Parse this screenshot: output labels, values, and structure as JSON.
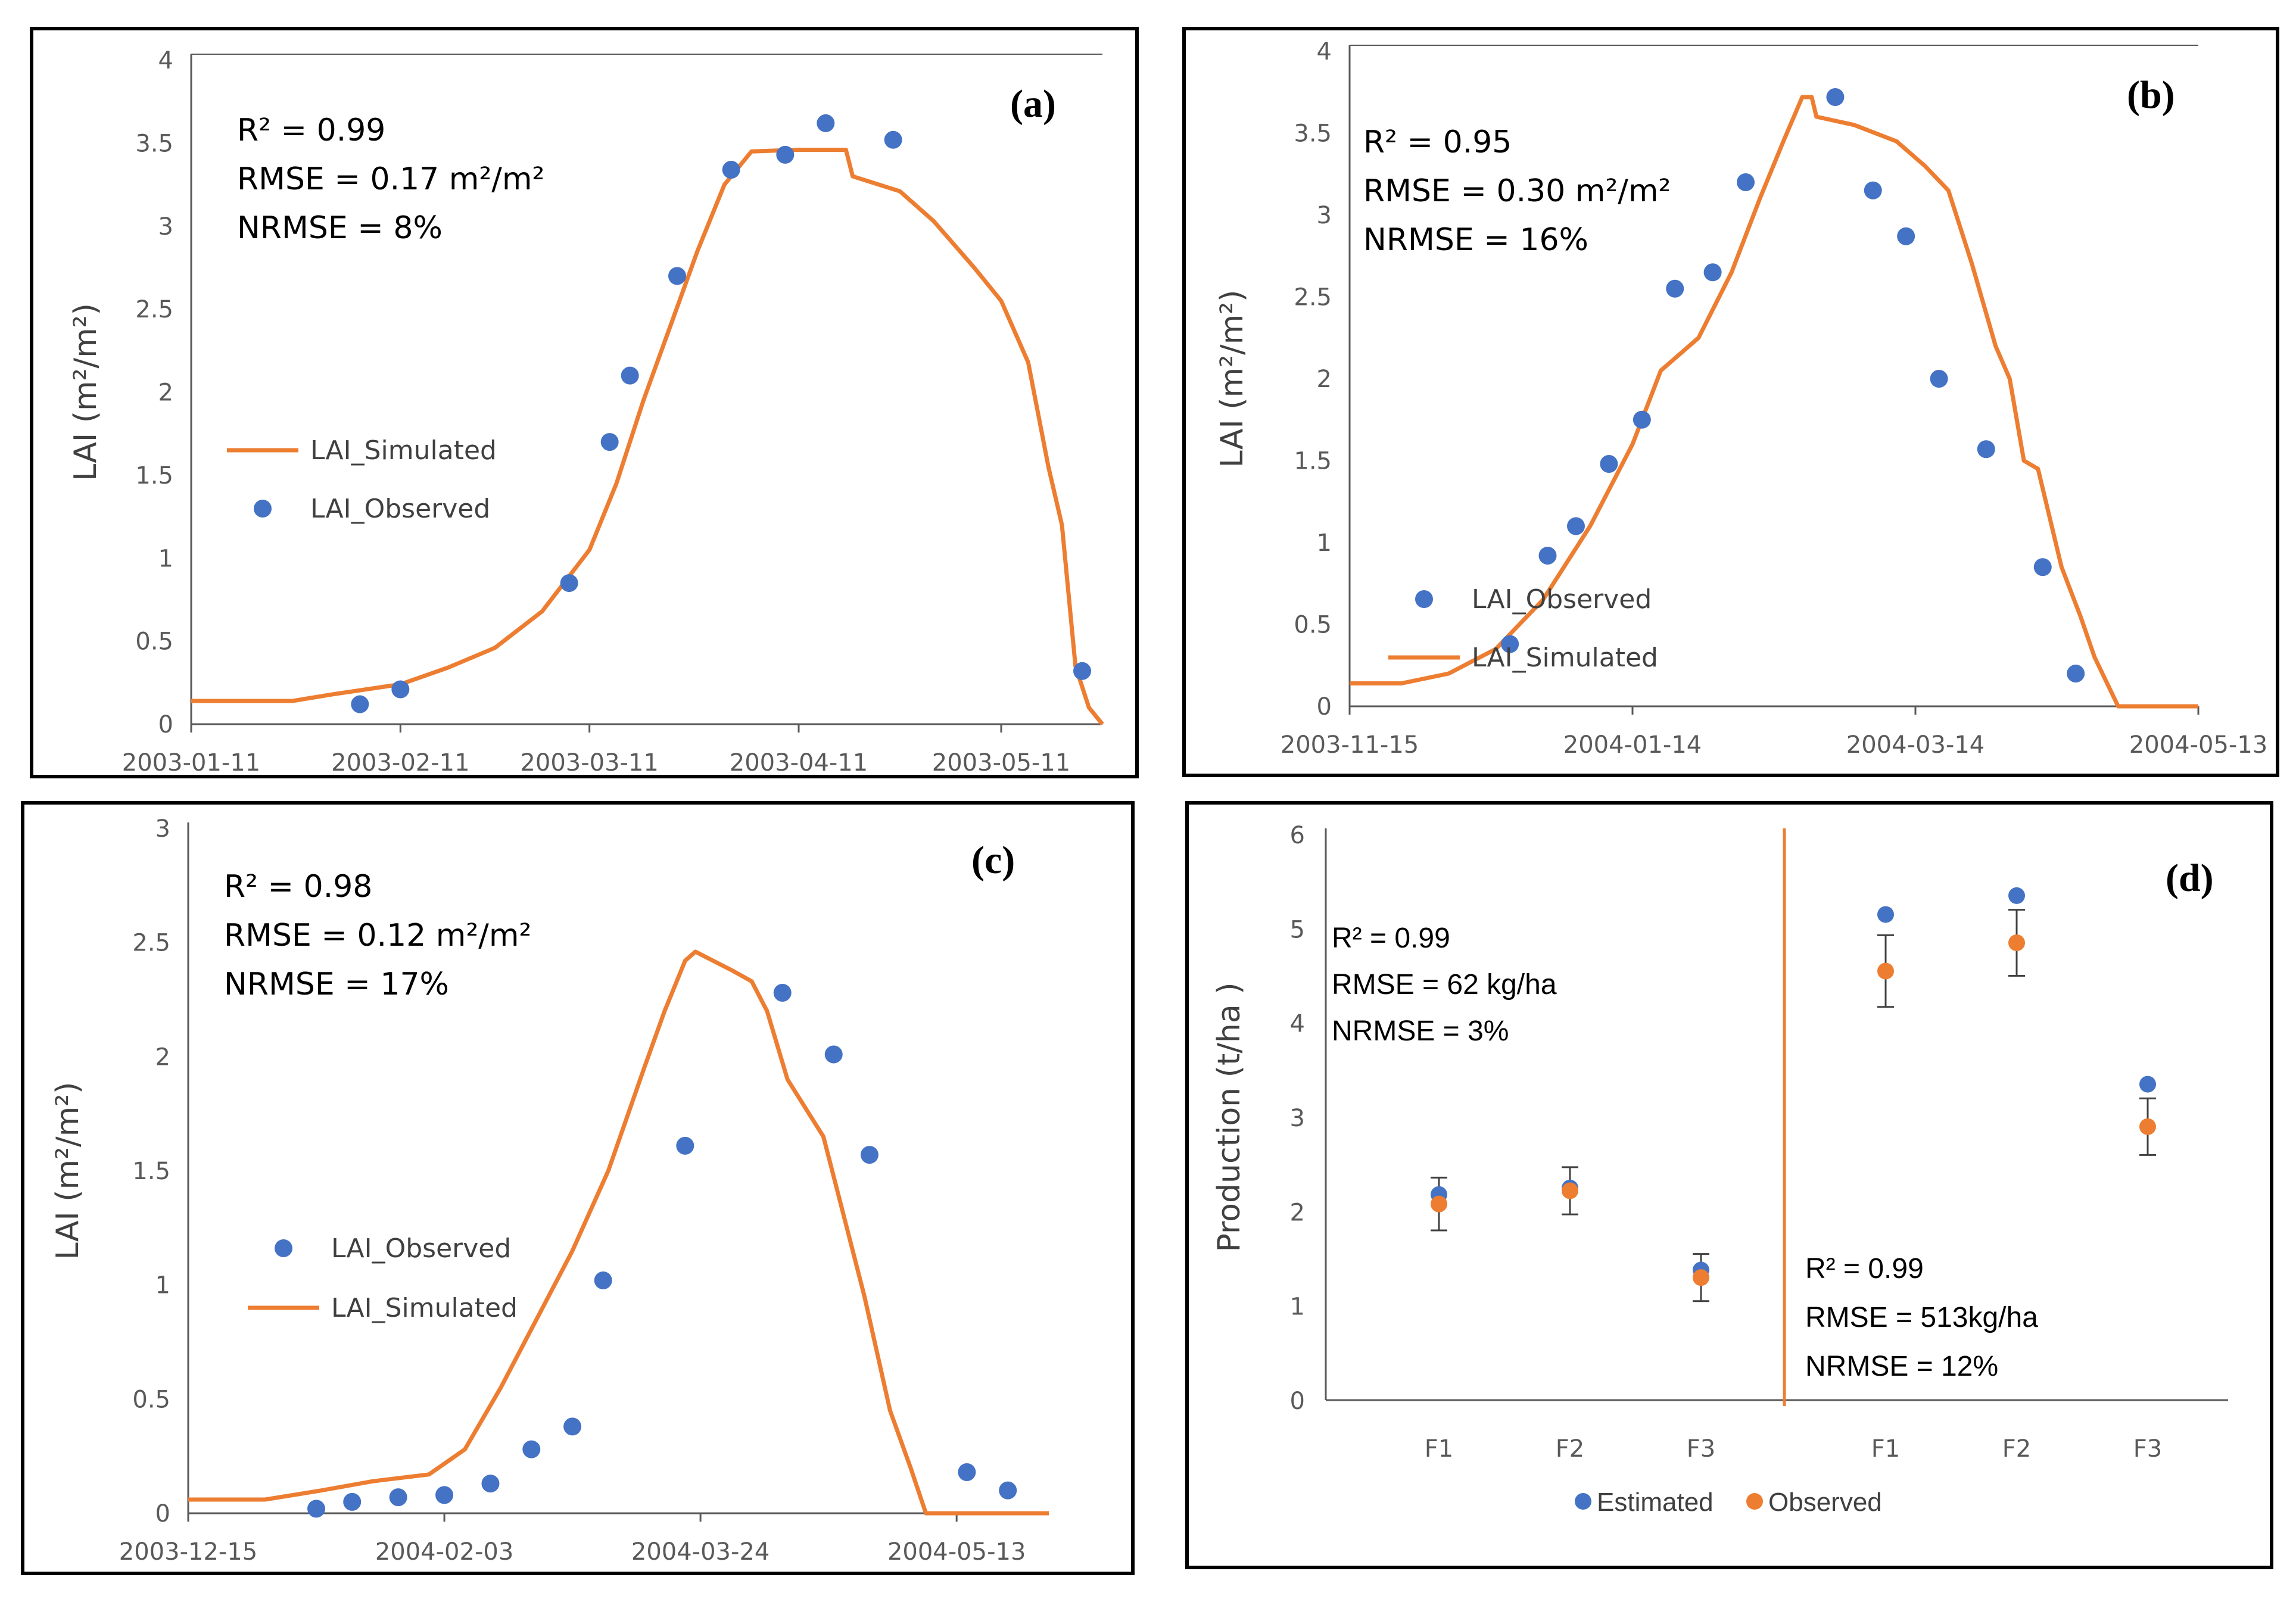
{
  "colors": {
    "simulated": "#ED7D31",
    "observed": "#4472C4",
    "estimated": "#4472C4",
    "observed_d": "#ED7D31",
    "axis": "#595959",
    "divider": "#ED7D31",
    "errorbar": "#404040"
  },
  "chart_data": [
    {
      "id": "a",
      "type": "line",
      "panel_label": "(a)",
      "ylabel": "LAI (m²/m²)",
      "ylim": [
        0,
        4
      ],
      "yticks": [
        "0",
        "0.5",
        "1",
        "1.5",
        "2",
        "2.5",
        "3",
        "3.5",
        "4"
      ],
      "xaxis_kind": "date",
      "xlim": [
        "2003-01-11",
        "2003-05-26"
      ],
      "xticks": [
        "2003-01-11",
        "2003-02-11",
        "2003-03-11",
        "2003-04-11",
        "2003-05-11"
      ],
      "stats": [
        "R² = 0.99",
        "RMSE = 0.17 m²/m²",
        "NRMSE = 8%"
      ],
      "legend": {
        "simulated": "LAI_Simulated",
        "observed": "LAI_Observed",
        "order": [
          "simulated",
          "observed"
        ]
      },
      "series": [
        {
          "name": "LAI_Simulated",
          "kind": "line",
          "points": [
            [
              "2003-01-11",
              0.14
            ],
            [
              "2003-01-26",
              0.14
            ],
            [
              "2003-02-01",
              0.18
            ],
            [
              "2003-02-11",
              0.24
            ],
            [
              "2003-02-18",
              0.34
            ],
            [
              "2003-02-25",
              0.46
            ],
            [
              "2003-03-04",
              0.68
            ],
            [
              "2003-03-11",
              1.05
            ],
            [
              "2003-03-15",
              1.45
            ],
            [
              "2003-03-19",
              1.95
            ],
            [
              "2003-03-23",
              2.4
            ],
            [
              "2003-03-27",
              2.85
            ],
            [
              "2003-03-31",
              3.25
            ],
            [
              "2003-04-04",
              3.45
            ],
            [
              "2003-04-11",
              3.46
            ],
            [
              "2003-04-18",
              3.46
            ],
            [
              "2003-04-19",
              3.3
            ],
            [
              "2003-04-26",
              3.21
            ],
            [
              "2003-05-01",
              3.03
            ],
            [
              "2003-05-07",
              2.75
            ],
            [
              "2003-05-11",
              2.55
            ],
            [
              "2003-05-15",
              2.18
            ],
            [
              "2003-05-18",
              1.55
            ],
            [
              "2003-05-20",
              1.2
            ],
            [
              "2003-05-22",
              0.35
            ],
            [
              "2003-05-24",
              0.1
            ],
            [
              "2003-05-26",
              0.0
            ]
          ]
        },
        {
          "name": "LAI_Observed",
          "kind": "scatter",
          "points": [
            [
              "2003-02-05",
              0.12
            ],
            [
              "2003-02-11",
              0.21
            ],
            [
              "2003-03-08",
              0.85
            ],
            [
              "2003-03-14",
              1.7
            ],
            [
              "2003-03-17",
              2.1
            ],
            [
              "2003-03-24",
              2.7
            ],
            [
              "2003-04-01",
              3.34
            ],
            [
              "2003-04-09",
              3.43
            ],
            [
              "2003-04-15",
              3.62
            ],
            [
              "2003-04-25",
              3.52
            ],
            [
              "2003-05-23",
              0.32
            ]
          ]
        }
      ]
    },
    {
      "id": "b",
      "type": "line",
      "panel_label": "(b)",
      "ylabel": "LAI (m²/m²)",
      "ylim": [
        0,
        4
      ],
      "yticks": [
        "0",
        "0.5",
        "1",
        "1.5",
        "2",
        "2.5",
        "3",
        "3.5",
        "4"
      ],
      "xaxis_kind": "date",
      "xlim": [
        "2003-11-15",
        "2004-05-13"
      ],
      "xticks": [
        "2003-11-15",
        "2004-01-14",
        "2004-03-14",
        "2004-05-13"
      ],
      "stats": [
        "R² = 0.95",
        "RMSE = 0.30 m²/m²",
        "NRMSE = 16%"
      ],
      "legend": {
        "simulated": "LAI_Simulated",
        "observed": "LAI_Observed",
        "order": [
          "observed",
          "simulated"
        ]
      },
      "series": [
        {
          "name": "LAI_Simulated",
          "kind": "line",
          "points": [
            [
              "2003-11-15",
              0.14
            ],
            [
              "2003-11-26",
              0.14
            ],
            [
              "2003-12-06",
              0.2
            ],
            [
              "2003-12-16",
              0.35
            ],
            [
              "2003-12-26",
              0.65
            ],
            [
              "2004-01-05",
              1.1
            ],
            [
              "2004-01-14",
              1.6
            ],
            [
              "2004-01-20",
              2.05
            ],
            [
              "2004-01-28",
              2.25
            ],
            [
              "2004-02-04",
              2.65
            ],
            [
              "2004-02-10",
              3.1
            ],
            [
              "2004-02-15",
              3.45
            ],
            [
              "2004-02-19",
              3.72
            ],
            [
              "2004-02-21",
              3.72
            ],
            [
              "2004-02-22",
              3.6
            ],
            [
              "2004-03-01",
              3.55
            ],
            [
              "2004-03-10",
              3.45
            ],
            [
              "2004-03-16",
              3.3
            ],
            [
              "2004-03-21",
              3.15
            ],
            [
              "2004-03-26",
              2.7
            ],
            [
              "2004-03-31",
              2.2
            ],
            [
              "2004-04-03",
              2.0
            ],
            [
              "2004-04-06",
              1.5
            ],
            [
              "2004-04-09",
              1.45
            ],
            [
              "2004-04-14",
              0.85
            ],
            [
              "2004-04-18",
              0.55
            ],
            [
              "2004-04-21",
              0.3
            ],
            [
              "2004-04-26",
              0.0
            ],
            [
              "2004-05-13",
              0.0
            ]
          ]
        },
        {
          "name": "LAI_Observed",
          "kind": "scatter",
          "points": [
            [
              "2003-12-19",
              0.38
            ],
            [
              "2003-12-27",
              0.92
            ],
            [
              "2004-01-02",
              1.1
            ],
            [
              "2004-01-09",
              1.48
            ],
            [
              "2004-01-16",
              1.75
            ],
            [
              "2004-01-23",
              2.55
            ],
            [
              "2004-01-31",
              2.65
            ],
            [
              "2004-02-07",
              3.2
            ],
            [
              "2004-02-26",
              3.72
            ],
            [
              "2004-03-05",
              3.15
            ],
            [
              "2004-03-12",
              2.87
            ],
            [
              "2004-03-19",
              2.0
            ],
            [
              "2004-03-29",
              1.57
            ],
            [
              "2004-04-10",
              0.85
            ],
            [
              "2004-04-17",
              0.2
            ]
          ]
        }
      ]
    },
    {
      "id": "c",
      "type": "line",
      "panel_label": "(c)",
      "ylabel": "LAI (m²/m²)",
      "ylim": [
        0,
        3
      ],
      "yticks": [
        "0",
        "0.5",
        "1",
        "1.5",
        "2",
        "2.5",
        "3"
      ],
      "xaxis_kind": "date",
      "xlim": [
        "2003-12-15",
        "2004-05-31"
      ],
      "xticks": [
        "2003-12-15",
        "2004-02-03",
        "2004-03-24",
        "2004-05-13"
      ],
      "stats": [
        "R² = 0.98",
        "RMSE = 0.12 m²/m²",
        "NRMSE = 17%"
      ],
      "legend": {
        "simulated": "LAI_Simulated",
        "observed": "LAI_Observed",
        "order": [
          "observed",
          "simulated"
        ]
      },
      "series": [
        {
          "name": "LAI_Simulated",
          "kind": "line",
          "points": [
            [
              "2003-12-15",
              0.06
            ],
            [
              "2003-12-30",
              0.06
            ],
            [
              "2004-01-10",
              0.1
            ],
            [
              "2004-01-20",
              0.14
            ],
            [
              "2004-01-31",
              0.17
            ],
            [
              "2004-02-07",
              0.28
            ],
            [
              "2004-02-14",
              0.55
            ],
            [
              "2004-02-21",
              0.85
            ],
            [
              "2004-02-28",
              1.15
            ],
            [
              "2004-03-06",
              1.5
            ],
            [
              "2004-03-13",
              1.95
            ],
            [
              "2004-03-17",
              2.2
            ],
            [
              "2004-03-21",
              2.42
            ],
            [
              "2004-03-23",
              2.46
            ],
            [
              "2004-03-30",
              2.38
            ],
            [
              "2004-04-03",
              2.33
            ],
            [
              "2004-04-06",
              2.2
            ],
            [
              "2004-04-10",
              1.9
            ],
            [
              "2004-04-17",
              1.65
            ],
            [
              "2004-04-21",
              1.3
            ],
            [
              "2004-04-25",
              0.95
            ],
            [
              "2004-04-30",
              0.45
            ],
            [
              "2004-05-04",
              0.2
            ],
            [
              "2004-05-07",
              0.0
            ],
            [
              "2004-05-31",
              0.0
            ]
          ]
        },
        {
          "name": "LAI_Observed",
          "kind": "scatter",
          "points": [
            [
              "2004-01-09",
              0.02
            ],
            [
              "2004-01-16",
              0.05
            ],
            [
              "2004-01-25",
              0.07
            ],
            [
              "2004-02-03",
              0.08
            ],
            [
              "2004-02-12",
              0.13
            ],
            [
              "2004-02-20",
              0.28
            ],
            [
              "2004-02-28",
              0.38
            ],
            [
              "2004-03-05",
              1.02
            ],
            [
              "2004-03-21",
              1.61
            ],
            [
              "2004-04-09",
              2.28
            ],
            [
              "2004-04-19",
              2.01
            ],
            [
              "2004-04-26",
              1.57
            ],
            [
              "2004-05-15",
              0.18
            ],
            [
              "2004-05-23",
              0.1
            ]
          ]
        }
      ]
    },
    {
      "id": "d",
      "type": "scatter",
      "panel_label": "(d)",
      "ylabel": "Production (t/ha )",
      "ylim": [
        0,
        6
      ],
      "yticks": [
        "0",
        "1",
        "2",
        "3",
        "4",
        "5",
        "6"
      ],
      "categories": [
        "F1",
        "F2",
        "F3",
        "F1",
        "F2",
        "F3"
      ],
      "stats_left": [
        "R² = 0.99",
        "RMSE = 62 kg/ha",
        "NRMSE = 3%"
      ],
      "stats_right": [
        "R² = 0.99",
        "RMSE =  513kg/ha",
        "NRMSE = 12%"
      ],
      "legend": {
        "estimated": "Estimated",
        "observed": "Observed"
      },
      "series": [
        {
          "name": "Estimated",
          "values": [
            2.18,
            2.25,
            1.38,
            5.15,
            5.35,
            3.35
          ]
        },
        {
          "name": "Observed",
          "values": [
            2.08,
            2.22,
            1.3,
            4.55,
            4.85,
            2.9
          ],
          "error": [
            0.28,
            0.25,
            0.25,
            0.38,
            0.35,
            0.3
          ]
        }
      ]
    }
  ]
}
